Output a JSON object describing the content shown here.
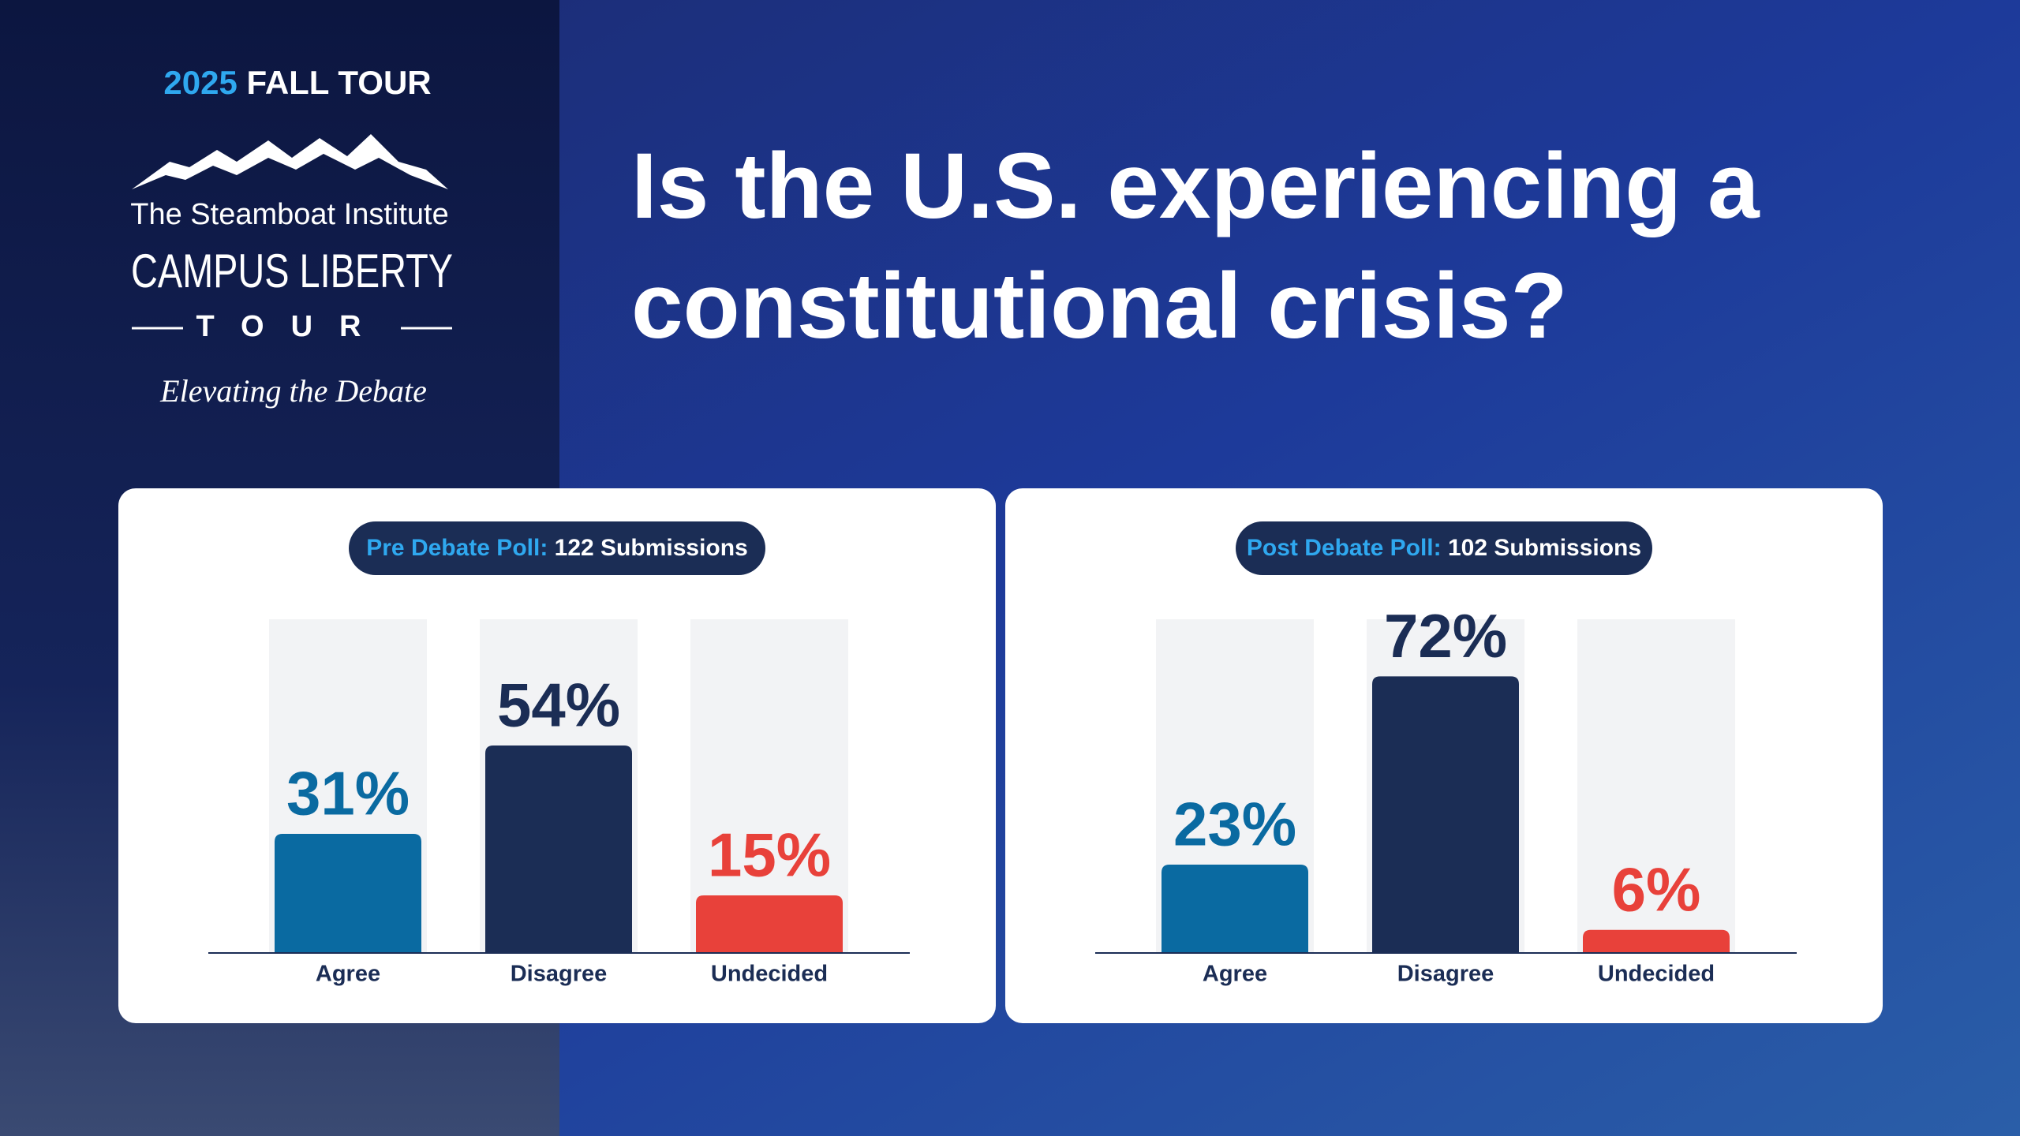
{
  "header": {
    "year": "2025",
    "tour": "FALL TOUR",
    "org": "The Steamboat Institute",
    "program": "CAMPUS LIBERTY",
    "program_sub": "TOUR",
    "tagline": "Elevating the Debate"
  },
  "title": "Is the U.S. experiencing a constitutional crisis?",
  "chart_data": [
    {
      "type": "bar",
      "title": "Pre Debate Poll:",
      "subtitle": "122 Submissions",
      "categories": [
        "Agree",
        "Disagree",
        "Undecided"
      ],
      "values": [
        31,
        54,
        15
      ],
      "value_labels": [
        "31%",
        "54%",
        "15%"
      ],
      "colors": [
        "#0a6aa1",
        "#1b2d55",
        "#e8413a"
      ],
      "ylim": [
        0,
        100
      ]
    },
    {
      "type": "bar",
      "title": "Post Debate Poll:",
      "subtitle": "102 Submissions",
      "categories": [
        "Agree",
        "Disagree",
        "Undecided"
      ],
      "values": [
        23,
        72,
        6
      ],
      "value_labels": [
        "23%",
        "72%",
        "6%"
      ],
      "colors": [
        "#0a6aa1",
        "#1b2d55",
        "#e8413a"
      ],
      "ylim": [
        0,
        100
      ]
    }
  ]
}
